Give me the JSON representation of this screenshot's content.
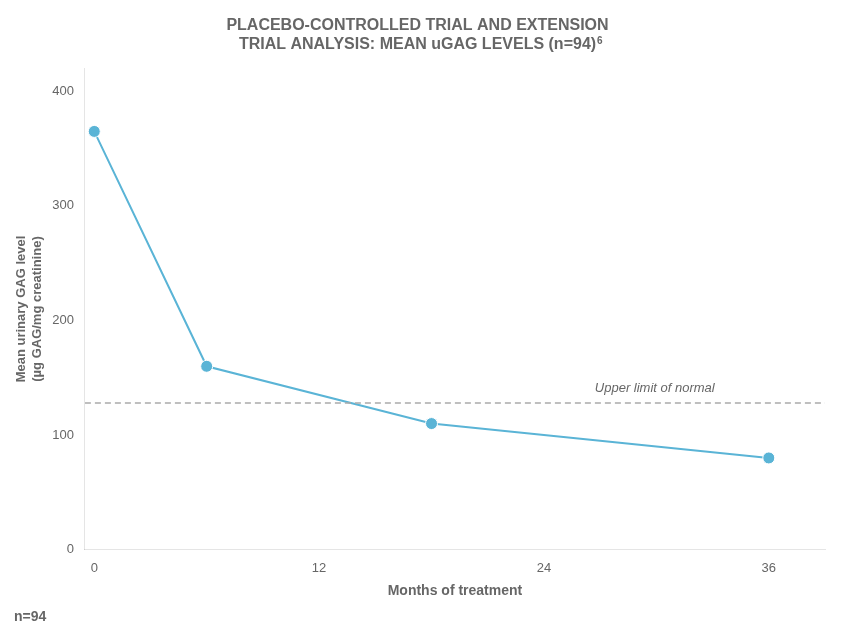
{
  "chart_data": {
    "type": "line",
    "title": [
      "PLACEBO-CONTROLLED TRIAL AND EXTENSION",
      "TRIAL ANALYSIS: MEAN uGAG LEVELS (n=94)"
    ],
    "title_superscript": "6",
    "x_label": "Months of treatment",
    "y_label": [
      "Mean urinary GAG level",
      "(µg GAG/mg creatinine)"
    ],
    "x": [
      0,
      6,
      18,
      36
    ],
    "values": [
      365,
      160,
      110,
      80
    ],
    "color": "#5ab4d6",
    "marker": "circle",
    "xlim": [
      -0.5,
      39
    ],
    "xticks": [
      0,
      12,
      24,
      36
    ],
    "ylim": [
      0,
      420
    ],
    "yticks": [
      0,
      100,
      200,
      300,
      400
    ],
    "grid": false,
    "legend": false,
    "reference_line": {
      "value": 128,
      "label": "Upper limit of normal",
      "color": "#aaaaaa",
      "line_style": "dashed"
    },
    "annotation": "n=94"
  }
}
